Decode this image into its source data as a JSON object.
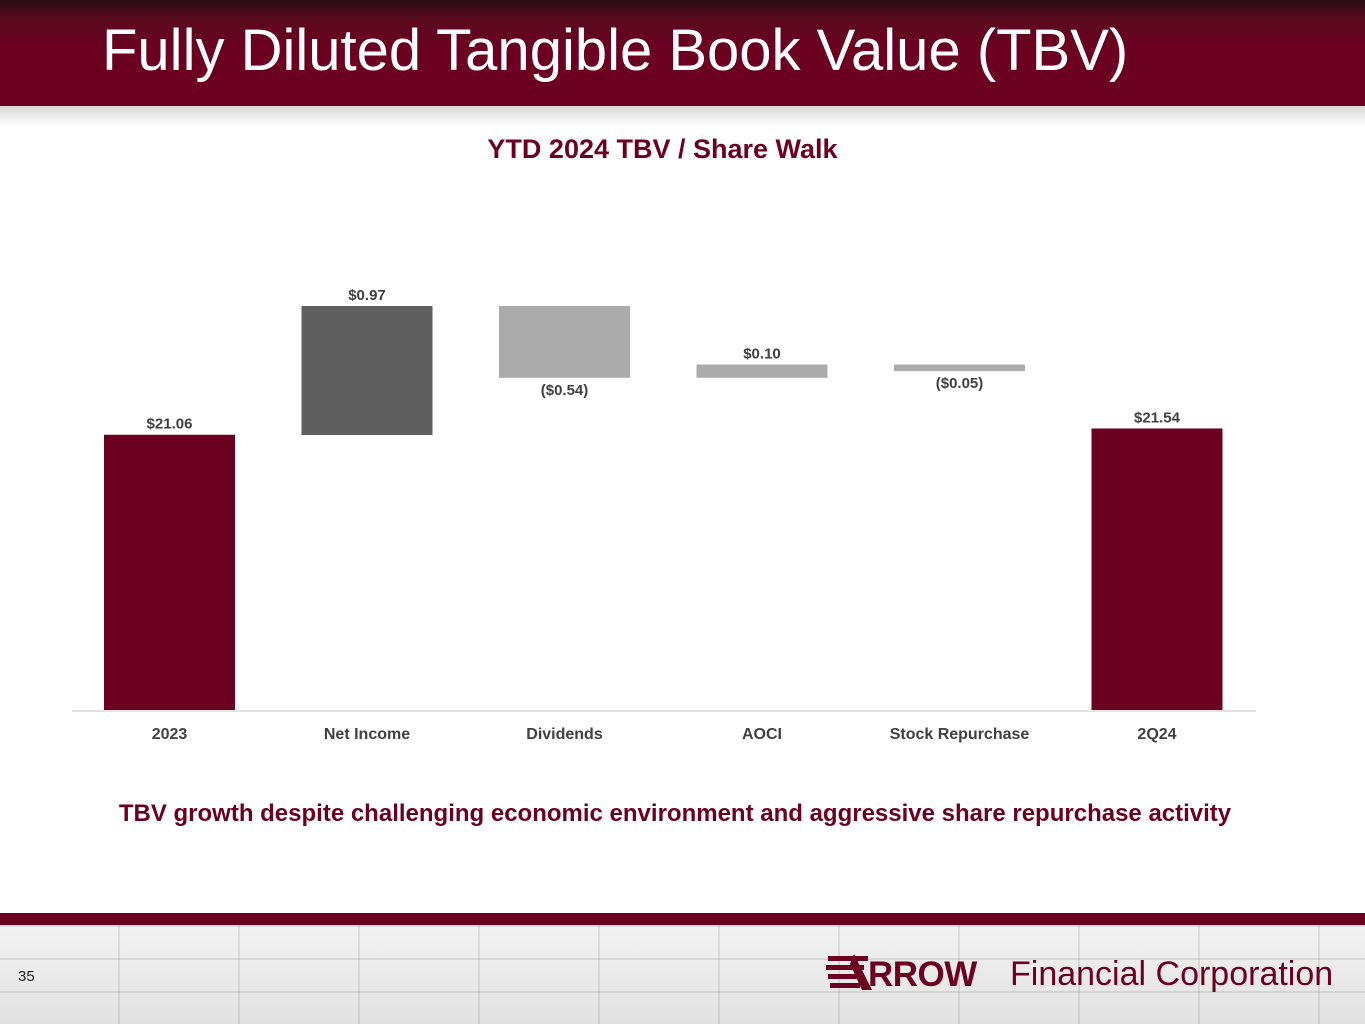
{
  "slide": {
    "title": "Fully Diluted Tangible Book Value (TBV)",
    "tagline": "TBV growth despite challenging economic environment and aggressive share repurchase activity",
    "page_number": "35"
  },
  "logo": {
    "arrow_word": "RROW",
    "rest": "Financial Corporation"
  },
  "colors": {
    "brand": "#6b0020",
    "increase_dark": "#5f5f5f",
    "change_light": "#ababab",
    "axis": "#d9d9d9",
    "label": "#404040"
  },
  "chart_data": {
    "type": "bar",
    "subtype": "waterfall",
    "title": "YTD 2024 TBV / Share Walk",
    "categories": [
      "2023",
      "Net Income",
      "Dividends",
      "AOCI",
      "Stock Repurchase",
      "2Q24"
    ],
    "values": [
      21.06,
      0.97,
      -0.54,
      0.1,
      -0.05,
      21.54
    ],
    "kinds": [
      "total",
      "delta",
      "delta",
      "delta",
      "delta",
      "total"
    ],
    "data_labels": [
      "$21.06",
      "$0.97",
      "($0.54)",
      "$0.10",
      "($0.05)",
      "$21.54"
    ],
    "grid": false,
    "legend": "none"
  }
}
